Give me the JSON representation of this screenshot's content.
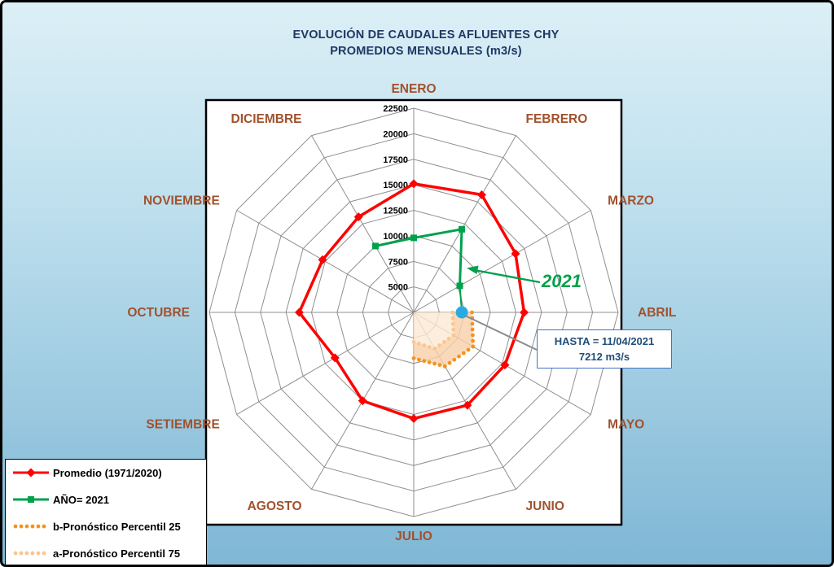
{
  "window": {
    "background_gradient_top": "#DCEFF6",
    "background_gradient_middle": "#BFE0EE",
    "background_gradient_bottom": "#7FB7D5",
    "frame_border_color": "#000000"
  },
  "title": {
    "line1": "EVOLUCIÓN DE CAUDALES AFLUENTES CHY",
    "line2": "PROMEDIOS MENSUALES (m3/s)",
    "color": "#1F3864"
  },
  "annotations": {
    "year_label": {
      "text": "2021",
      "color": "#00A14B"
    },
    "hasta_box": {
      "line1": "HASTA = 11/04/2021",
      "line2": "7212 m3/s",
      "text_color": "#1F4E79",
      "border_color": "#4472C4"
    }
  },
  "chart_data": {
    "type": "radar",
    "categories": [
      "ENERO",
      "FEBRERO",
      "MARZO",
      "ABRIL",
      "MAYO",
      "JUNIO",
      "JULIO",
      "AGOSTO",
      "SETIEMBRE",
      "OCTUBRE",
      "NOVIEMBRE",
      "DICIEMBRE"
    ],
    "category_label_color": "#A0522D",
    "axis": {
      "min": 2500,
      "max": 22500,
      "step": 2500,
      "tick_labels": [
        "5000",
        "7500",
        "10000",
        "12500",
        "15000",
        "17500",
        "20000",
        "22500"
      ],
      "grid_color": "#8F8F8F"
    },
    "series": [
      {
        "name": "Promedio (1971/2020)",
        "color": "#FF0000",
        "marker": "diamond",
        "line_style": "solid",
        "closed": true,
        "values": [
          15100,
          15800,
          14000,
          13300,
          12800,
          13000,
          12900,
          12500,
          11400,
          13700,
          12800,
          13300
        ]
      },
      {
        "name": "AÑO= 2021",
        "color": "#00A14B",
        "marker": "square",
        "line_style": "solid",
        "closed": false,
        "points": [
          {
            "month": "DICIEMBRE",
            "value": 10000
          },
          {
            "month": "ENERO",
            "value": 9800
          },
          {
            "month": "FEBRERO",
            "value": 11900
          },
          {
            "month": "MARZO",
            "value": 7700
          }
        ]
      },
      {
        "name": "b-Pronóstico Percentil 25",
        "color": "#F6921E",
        "marker": "dot",
        "line_style": "dotted",
        "closed": false,
        "points": [
          {
            "month": "ABRIL",
            "value": 8200
          },
          {
            "month": "MAYO",
            "value": 9200
          },
          {
            "month": "JUNIO",
            "value": 8600
          },
          {
            "month": "JULIO",
            "value": 7000
          }
        ]
      },
      {
        "name": "a-Pronóstico Percentil 75",
        "color": "#FBC690",
        "marker": "dot",
        "line_style": "dotted",
        "closed": false,
        "points": [
          {
            "month": "ABRIL",
            "value": 6300
          },
          {
            "month": "MAYO",
            "value": 7000
          },
          {
            "month": "JUNIO",
            "value": 6600
          },
          {
            "month": "JULIO",
            "value": 5400
          }
        ]
      }
    ],
    "forecast_fill": {
      "colors": [
        "#FDE9D4",
        "#F8CFA8"
      ],
      "opacity": 0.8
    },
    "current_point": {
      "month": "ABRIL",
      "value": 7212,
      "color": "#29ABE2"
    }
  }
}
